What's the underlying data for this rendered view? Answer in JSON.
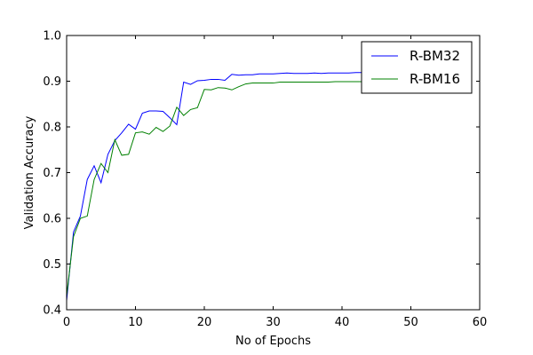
{
  "chart_data": {
    "type": "line",
    "title": "",
    "xlabel": "No of Epochs",
    "ylabel": "Validation Accuracy",
    "xlim": [
      0,
      60
    ],
    "ylim": [
      0.4,
      1.0
    ],
    "xticks": [
      "0",
      "10",
      "20",
      "30",
      "40",
      "50",
      "60"
    ],
    "yticks": [
      "0.4",
      "0.5",
      "0.6",
      "0.7",
      "0.8",
      "0.9",
      "1.0"
    ],
    "grid": false,
    "legend_position": "top-right",
    "x": [
      0,
      1,
      2,
      3,
      4,
      5,
      6,
      7,
      8,
      9,
      10,
      11,
      12,
      13,
      14,
      15,
      16,
      17,
      18,
      19,
      20,
      21,
      22,
      23,
      24,
      25,
      26,
      27,
      28,
      29,
      30,
      31,
      32,
      33,
      34,
      35,
      36,
      37,
      38,
      39,
      40,
      41,
      42,
      43,
      44,
      45,
      46,
      47,
      48,
      49
    ],
    "series": [
      {
        "name": "R-BM32",
        "color": "#0000ff",
        "values": [
          0.42,
          0.57,
          0.605,
          0.685,
          0.715,
          0.678,
          0.74,
          0.77,
          0.787,
          0.806,
          0.795,
          0.83,
          0.835,
          0.835,
          0.834,
          0.82,
          0.805,
          0.898,
          0.893,
          0.901,
          0.902,
          0.904,
          0.904,
          0.902,
          0.915,
          0.913,
          0.914,
          0.914,
          0.916,
          0.916,
          0.916,
          0.917,
          0.918,
          0.917,
          0.917,
          0.917,
          0.918,
          0.917,
          0.918,
          0.918,
          0.918,
          0.918,
          0.919,
          0.919,
          0.919,
          0.919,
          0.919,
          0.919,
          0.919,
          0.919
        ]
      },
      {
        "name": "R-BM16",
        "color": "#008000",
        "values": [
          0.43,
          0.56,
          0.6,
          0.605,
          0.685,
          0.72,
          0.7,
          0.772,
          0.738,
          0.74,
          0.787,
          0.789,
          0.784,
          0.799,
          0.79,
          0.802,
          0.843,
          0.825,
          0.838,
          0.842,
          0.882,
          0.881,
          0.886,
          0.885,
          0.881,
          0.888,
          0.894,
          0.896,
          0.896,
          0.896,
          0.896,
          0.898,
          0.898,
          0.898,
          0.898,
          0.898,
          0.898,
          0.898,
          0.898,
          0.899,
          0.899,
          0.899,
          0.899,
          0.899,
          0.899,
          0.899,
          0.899,
          0.899,
          0.899,
          0.899
        ]
      }
    ]
  }
}
